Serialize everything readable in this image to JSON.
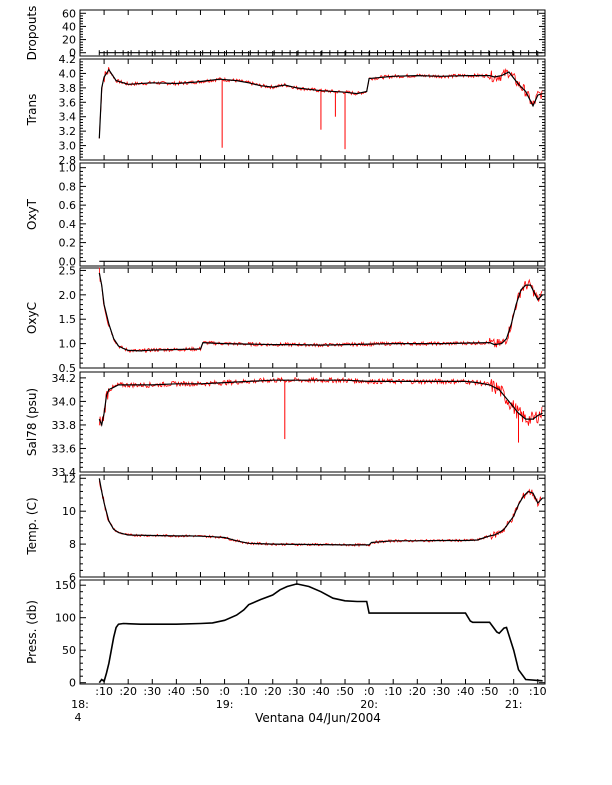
{
  "figure": {
    "xlabel": "Ventana 04/Jun/2004",
    "xticks": [
      ":10",
      ":20",
      ":30",
      ":40",
      ":50",
      ":0",
      ":10",
      ":20",
      ":30",
      ":40",
      ":50",
      ":0",
      ":10",
      ":20",
      ":30",
      ":40",
      ":50",
      ":0",
      ":10"
    ],
    "xtick_minutes": [
      1090,
      1100,
      1110,
      1120,
      1130,
      1140,
      1150,
      1160,
      1170,
      1180,
      1190,
      1200,
      1210,
      1220,
      1230,
      1240,
      1250,
      1260,
      1270
    ],
    "hour_labels": [
      {
        "minute": 1080,
        "text": "18:",
        "sub": "4"
      },
      {
        "minute": 1140,
        "text": "19:",
        "sub": ""
      },
      {
        "minute": 1200,
        "text": "20:",
        "sub": ""
      },
      {
        "minute": 1260,
        "text": "21:",
        "sub": ""
      }
    ],
    "xlim": [
      1080,
      1273
    ],
    "colors": {
      "trace": "#000000",
      "raw": "#ff0000",
      "axis": "#000000"
    }
  },
  "chart_data": [
    {
      "type": "scatter",
      "panel": "Dropouts",
      "ylabel": "Dropouts",
      "ylim": [
        -5,
        65
      ],
      "yticks": [
        "0",
        "20",
        "40",
        "60"
      ],
      "ytick_values": [
        0,
        20,
        40,
        60
      ],
      "series": [
        {
          "x": [
            1088,
            1272
          ],
          "y": [
            0,
            0
          ],
          "style": "dotted-markers"
        }
      ]
    },
    {
      "type": "line",
      "panel": "Trans",
      "ylabel": "Trans",
      "ylim": [
        2.8,
        4.2
      ],
      "yticks": [
        "2.8",
        "3.0",
        "3.2",
        "3.4",
        "3.6",
        "3.8",
        "4.0",
        "4.2"
      ],
      "ytick_values": [
        2.8,
        3.0,
        3.2,
        3.4,
        3.6,
        3.8,
        4.0,
        4.2
      ],
      "series": [
        {
          "x": [
            1088,
            1089,
            1090,
            1092,
            1095,
            1100,
            1110,
            1120,
            1128,
            1133,
            1138,
            1145,
            1150,
            1155,
            1160,
            1165,
            1170,
            1180,
            1190,
            1195,
            1199,
            1200,
            1210,
            1220,
            1230,
            1240,
            1248,
            1250,
            1252,
            1255,
            1258,
            1262,
            1265,
            1268,
            1270,
            1272
          ],
          "y": [
            3.1,
            3.8,
            3.95,
            4.05,
            3.9,
            3.85,
            3.87,
            3.86,
            3.88,
            3.9,
            3.92,
            3.9,
            3.87,
            3.83,
            3.81,
            3.84,
            3.8,
            3.76,
            3.74,
            3.72,
            3.75,
            3.93,
            3.96,
            3.97,
            3.96,
            3.97,
            3.97,
            3.97,
            3.95,
            3.97,
            4.02,
            3.85,
            3.75,
            3.55,
            3.7,
            3.72
          ]
        }
      ],
      "spikes": [
        {
          "x": 1139,
          "y": 2.97
        },
        {
          "x": 1180,
          "y": 3.22
        },
        {
          "x": 1186,
          "y": 3.4
        },
        {
          "x": 1190,
          "y": 2.95
        }
      ]
    },
    {
      "type": "line",
      "panel": "OxyT",
      "ylabel": "OxyT",
      "ylim": [
        -0.05,
        1.05
      ],
      "yticks": [
        "0.0",
        "0.2",
        "0.4",
        "0.6",
        "0.8",
        "1.0"
      ],
      "ytick_values": [
        0,
        0.2,
        0.4,
        0.6,
        0.8,
        1.0
      ],
      "series": [
        {
          "x": [
            1088,
            1272
          ],
          "y": [
            0,
            0
          ]
        }
      ]
    },
    {
      "type": "line",
      "panel": "OxyC",
      "ylabel": "OxyC",
      "ylim": [
        0.5,
        2.55
      ],
      "yticks": [
        "0.5",
        "1.0",
        "1.5",
        "2.0",
        "2.5"
      ],
      "ytick_values": [
        0.5,
        1.0,
        1.5,
        2.0,
        2.5
      ],
      "series": [
        {
          "x": [
            1088,
            1089,
            1090,
            1092,
            1094,
            1096,
            1098,
            1100,
            1105,
            1110,
            1120,
            1130,
            1131,
            1135,
            1140,
            1150,
            1160,
            1170,
            1180,
            1190,
            1200,
            1210,
            1220,
            1230,
            1240,
            1250,
            1252,
            1255,
            1257,
            1259,
            1261,
            1263,
            1265,
            1267,
            1270,
            1272
          ],
          "y": [
            2.45,
            2.2,
            1.8,
            1.4,
            1.1,
            0.95,
            0.9,
            0.86,
            0.85,
            0.87,
            0.88,
            0.89,
            1.02,
            1.01,
            1.0,
            0.99,
            0.98,
            0.98,
            0.97,
            0.98,
            0.99,
            1.0,
            1.0,
            1.0,
            1.01,
            1.02,
            0.98,
            1.0,
            1.1,
            1.4,
            1.8,
            2.1,
            2.2,
            2.2,
            1.9,
            2.0
          ]
        }
      ]
    },
    {
      "type": "line",
      "panel": "Sal78",
      "ylabel": "Sal78 (psu)",
      "ylim": [
        33.4,
        34.25
      ],
      "yticks": [
        "33.4",
        "33.6",
        "33.8",
        "34.0",
        "34.2"
      ],
      "ytick_values": [
        33.4,
        33.6,
        33.8,
        34.0,
        34.2
      ],
      "series": [
        {
          "x": [
            1088,
            1089,
            1090,
            1091,
            1092,
            1094,
            1096,
            1100,
            1110,
            1120,
            1130,
            1140,
            1150,
            1160,
            1170,
            1180,
            1190,
            1200,
            1210,
            1220,
            1230,
            1240,
            1245,
            1250,
            1252,
            1254,
            1256,
            1258,
            1260,
            1262,
            1265,
            1268,
            1270,
            1272
          ],
          "y": [
            33.85,
            33.8,
            33.9,
            34.05,
            34.1,
            34.12,
            34.14,
            34.14,
            34.14,
            34.15,
            34.15,
            34.16,
            34.17,
            34.18,
            34.18,
            34.18,
            34.18,
            34.17,
            34.17,
            34.17,
            34.17,
            34.17,
            34.16,
            34.14,
            34.12,
            34.1,
            34.05,
            34.0,
            33.95,
            33.9,
            33.85,
            33.85,
            33.88,
            33.9
          ]
        }
      ],
      "spikes": [
        {
          "x": 1165,
          "y": 33.68
        },
        {
          "x": 1262,
          "y": 33.65
        }
      ]
    },
    {
      "type": "line",
      "panel": "Temp",
      "ylabel": "Temp. (C)",
      "ylim": [
        6,
        12.2
      ],
      "yticks": [
        "6",
        "8",
        "10",
        "12"
      ],
      "ytick_values": [
        6,
        8,
        10,
        12
      ],
      "series": [
        {
          "x": [
            1088,
            1089,
            1090,
            1092,
            1094,
            1096,
            1100,
            1110,
            1120,
            1125,
            1130,
            1135,
            1140,
            1145,
            1150,
            1160,
            1170,
            1180,
            1190,
            1200,
            1201,
            1210,
            1220,
            1230,
            1240,
            1245,
            1248,
            1250,
            1252,
            1254,
            1256,
            1258,
            1260,
            1262,
            1264,
            1266,
            1268,
            1270,
            1272
          ],
          "y": [
            12.0,
            11.2,
            10.5,
            9.4,
            8.9,
            8.7,
            8.55,
            8.52,
            8.5,
            8.5,
            8.48,
            8.45,
            8.4,
            8.2,
            8.05,
            8.0,
            7.98,
            7.97,
            7.95,
            7.95,
            8.1,
            8.2,
            8.2,
            8.22,
            8.22,
            8.25,
            8.4,
            8.5,
            8.55,
            8.7,
            8.9,
            9.3,
            9.7,
            10.4,
            10.9,
            11.2,
            11.1,
            10.5,
            10.8
          ]
        }
      ]
    },
    {
      "type": "line",
      "panel": "Press",
      "ylabel": "Press. (db)",
      "ylim": [
        -2,
        158
      ],
      "yticks": [
        "0",
        "50",
        "100",
        "150"
      ],
      "ytick_values": [
        0,
        50,
        100,
        150
      ],
      "series": [
        {
          "x": [
            1088,
            1089,
            1090,
            1091,
            1092,
            1093,
            1094,
            1095,
            1096,
            1098,
            1105,
            1120,
            1130,
            1135,
            1140,
            1145,
            1148,
            1150,
            1155,
            1160,
            1163,
            1166,
            1170,
            1175,
            1180,
            1185,
            1190,
            1195,
            1199,
            1200,
            1210,
            1220,
            1230,
            1240,
            1242,
            1243,
            1250,
            1251,
            1253,
            1254,
            1256,
            1257,
            1260,
            1262,
            1265,
            1272
          ],
          "y": [
            0,
            5,
            2,
            15,
            30,
            50,
            70,
            85,
            90,
            91,
            90,
            90,
            91,
            92,
            96,
            104,
            112,
            120,
            128,
            135,
            143,
            148,
            152,
            148,
            140,
            130,
            126,
            125,
            125,
            107,
            107,
            107,
            107,
            107,
            95,
            93,
            93,
            88,
            78,
            76,
            84,
            85,
            50,
            20,
            5,
            3
          ]
        }
      ]
    }
  ]
}
